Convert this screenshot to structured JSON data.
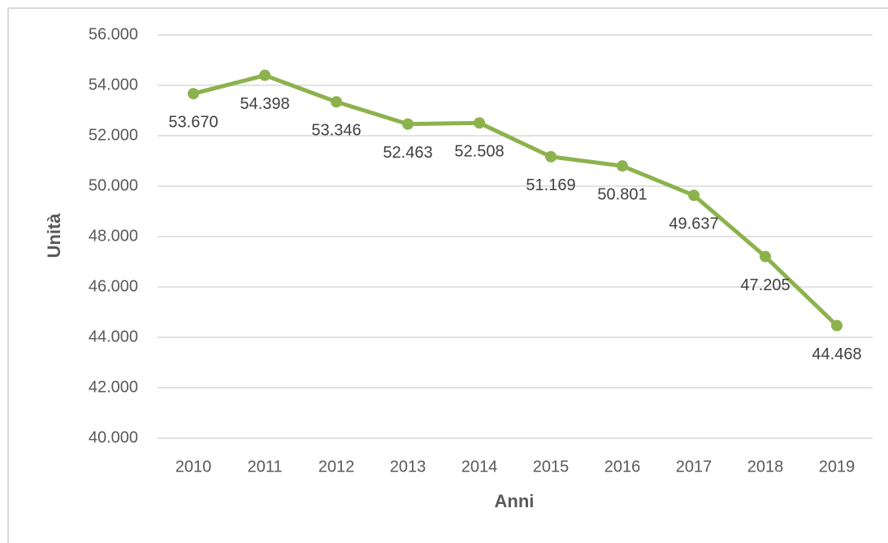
{
  "chart_data": {
    "type": "line",
    "x_label": "Anni",
    "y_label": "Unità",
    "categories": [
      "2010",
      "2011",
      "2012",
      "2013",
      "2014",
      "2015",
      "2016",
      "2017",
      "2018",
      "2019"
    ],
    "values": [
      53670,
      54398,
      53346,
      52463,
      52508,
      51169,
      50801,
      49637,
      47205,
      44468
    ],
    "value_labels": [
      "53.670",
      "54.398",
      "53.346",
      "52.463",
      "52.508",
      "51.169",
      "50.801",
      "49.637",
      "47.205",
      "44.468"
    ],
    "color": "#8cb24e",
    "ylim": [
      40000,
      56000
    ],
    "yticks": [
      {
        "value": 40000,
        "label": "40.000"
      },
      {
        "value": 42000,
        "label": "42.000"
      },
      {
        "value": 44000,
        "label": "44.000"
      },
      {
        "value": 46000,
        "label": "46.000"
      },
      {
        "value": 48000,
        "label": "48.000"
      },
      {
        "value": 50000,
        "label": "50.000"
      },
      {
        "value": 52000,
        "label": "52.000"
      },
      {
        "value": 54000,
        "label": "54.000"
      },
      {
        "value": 56000,
        "label": "56.000"
      }
    ],
    "grid": true
  }
}
